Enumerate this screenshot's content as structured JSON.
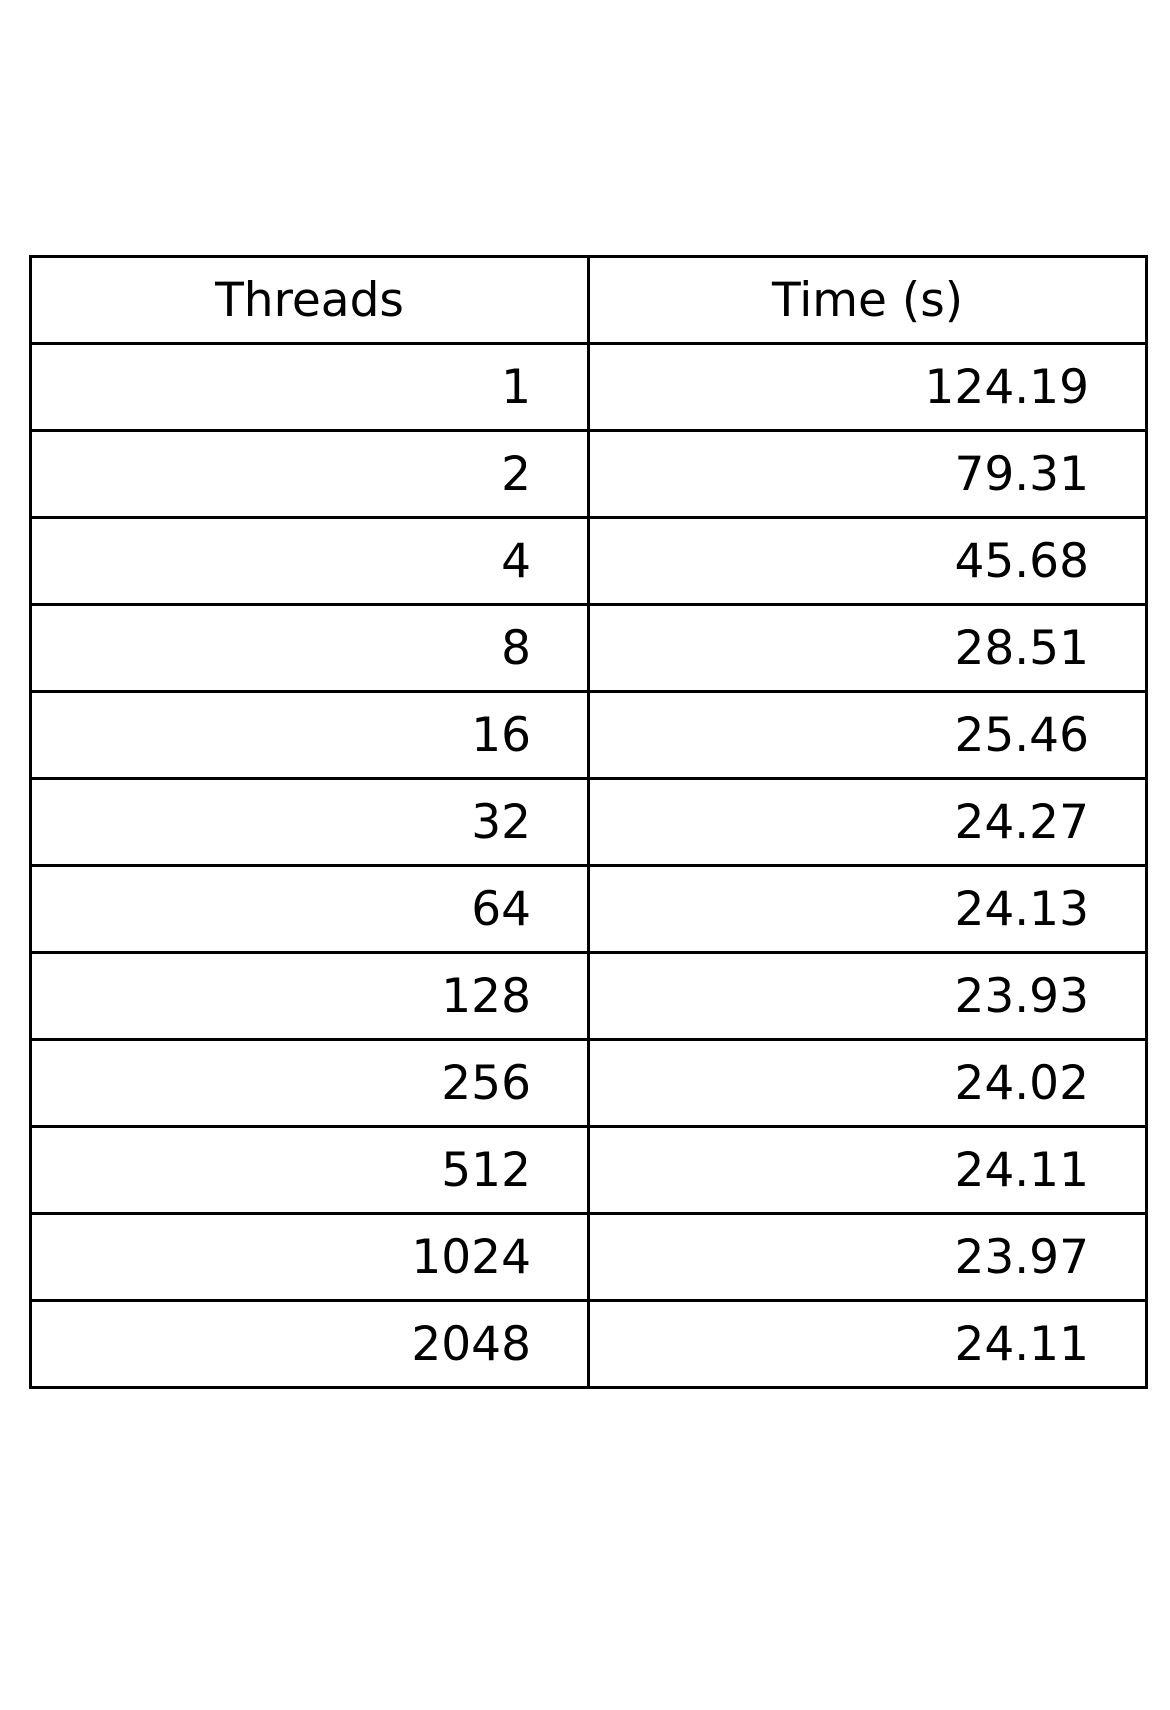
{
  "chart_data": {
    "type": "table",
    "columns": [
      "Threads",
      "Time (s)"
    ],
    "rows": [
      [
        "1",
        "124.19"
      ],
      [
        "2",
        "79.31"
      ],
      [
        "4",
        "45.68"
      ],
      [
        "8",
        "28.51"
      ],
      [
        "16",
        "25.46"
      ],
      [
        "32",
        "24.27"
      ],
      [
        "64",
        "24.13"
      ],
      [
        "128",
        "23.93"
      ],
      [
        "256",
        "24.02"
      ],
      [
        "512",
        "24.11"
      ],
      [
        "1024",
        "23.97"
      ],
      [
        "2048",
        "24.11"
      ]
    ]
  }
}
